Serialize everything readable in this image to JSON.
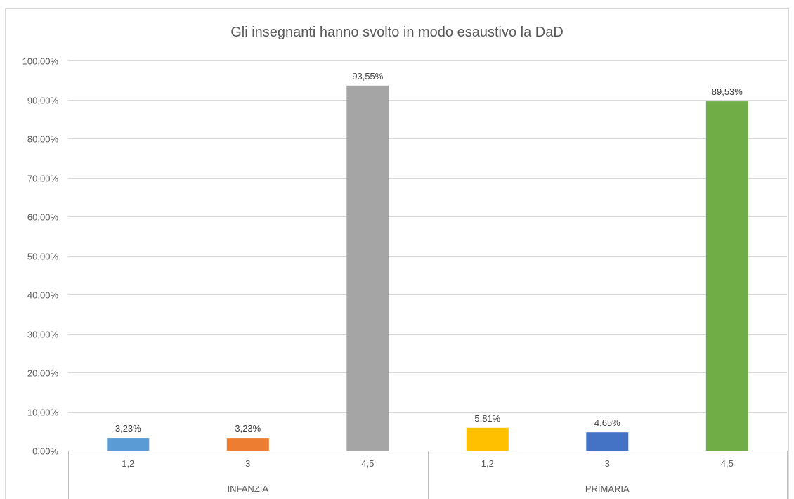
{
  "chart_data": {
    "type": "bar",
    "title": "Gli insegnanti hanno svolto in modo esaustivo la DaD",
    "xlabel": "",
    "ylabel": "",
    "ylim": [
      0,
      100
    ],
    "ytick_values": [
      0,
      10,
      20,
      30,
      40,
      50,
      60,
      70,
      80,
      90,
      100
    ],
    "ytick_labels": [
      "0,00%",
      "10,00%",
      "20,00%",
      "30,00%",
      "40,00%",
      "50,00%",
      "60,00%",
      "70,00%",
      "80,00%",
      "90,00%",
      "100,00%"
    ],
    "grid": true,
    "legend": "none",
    "groups": [
      {
        "name": "INFANZIA",
        "bars": [
          {
            "category": "1,2",
            "value": 3.23,
            "label": "3,23%",
            "color": "#5b9bd5"
          },
          {
            "category": "3",
            "value": 3.23,
            "label": "3,23%",
            "color": "#ed7d31"
          },
          {
            "category": "4,5",
            "value": 93.55,
            "label": "93,55%",
            "color": "#a5a5a5"
          }
        ]
      },
      {
        "name": "PRIMARIA",
        "bars": [
          {
            "category": "1,2",
            "value": 5.81,
            "label": "5,81%",
            "color": "#ffc000"
          },
          {
            "category": "3",
            "value": 4.65,
            "label": "4,65%",
            "color": "#4472c4"
          },
          {
            "category": "4,5",
            "value": 89.53,
            "label": "89,53%",
            "color": "#70ad47"
          }
        ]
      }
    ]
  }
}
